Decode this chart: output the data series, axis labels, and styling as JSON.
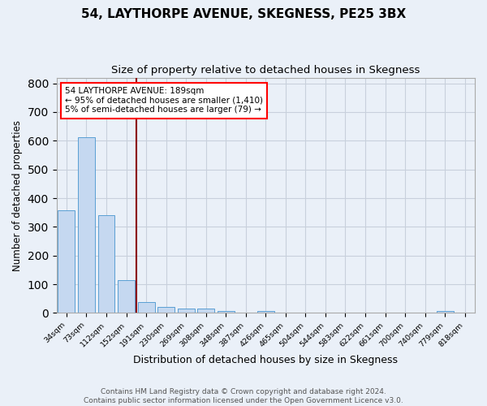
{
  "title": "54, LAYTHORPE AVENUE, SKEGNESS, PE25 3BX",
  "subtitle": "Size of property relative to detached houses in Skegness",
  "xlabel": "Distribution of detached houses by size in Skegness",
  "ylabel": "Number of detached properties",
  "footer_line1": "Contains HM Land Registry data © Crown copyright and database right 2024.",
  "footer_line2": "Contains public sector information licensed under the Open Government Licence v3.0.",
  "bar_labels": [
    "34sqm",
    "73sqm",
    "112sqm",
    "152sqm",
    "191sqm",
    "230sqm",
    "269sqm",
    "308sqm",
    "348sqm",
    "387sqm",
    "426sqm",
    "465sqm",
    "504sqm",
    "544sqm",
    "583sqm",
    "622sqm",
    "661sqm",
    "700sqm",
    "740sqm",
    "779sqm",
    "818sqm"
  ],
  "bar_values": [
    357,
    613,
    340,
    115,
    38,
    20,
    16,
    14,
    7,
    0,
    7,
    0,
    0,
    0,
    0,
    0,
    0,
    0,
    0,
    7,
    0
  ],
  "bar_color": "#c5d8f0",
  "bar_edge_color": "#5a9fd4",
  "grid_color": "#c8d0dc",
  "bg_color": "#eaf0f8",
  "vline_color": "#8b0000",
  "vline_x": 4.0,
  "annotation_box": {
    "text_line1": "54 LAYTHORPE AVENUE: 189sqm",
    "text_line2": "← 95% of detached houses are smaller (1,410)",
    "text_line3": "5% of semi-detached houses are larger (79) →",
    "box_color": "white",
    "edge_color": "red",
    "text_fontsize": 7.5
  },
  "ylim": [
    0,
    820
  ],
  "yticks": [
    0,
    100,
    200,
    300,
    400,
    500,
    600,
    700,
    800
  ],
  "title_fontsize": 11,
  "subtitle_fontsize": 9.5,
  "footer_fontsize": 6.5
}
